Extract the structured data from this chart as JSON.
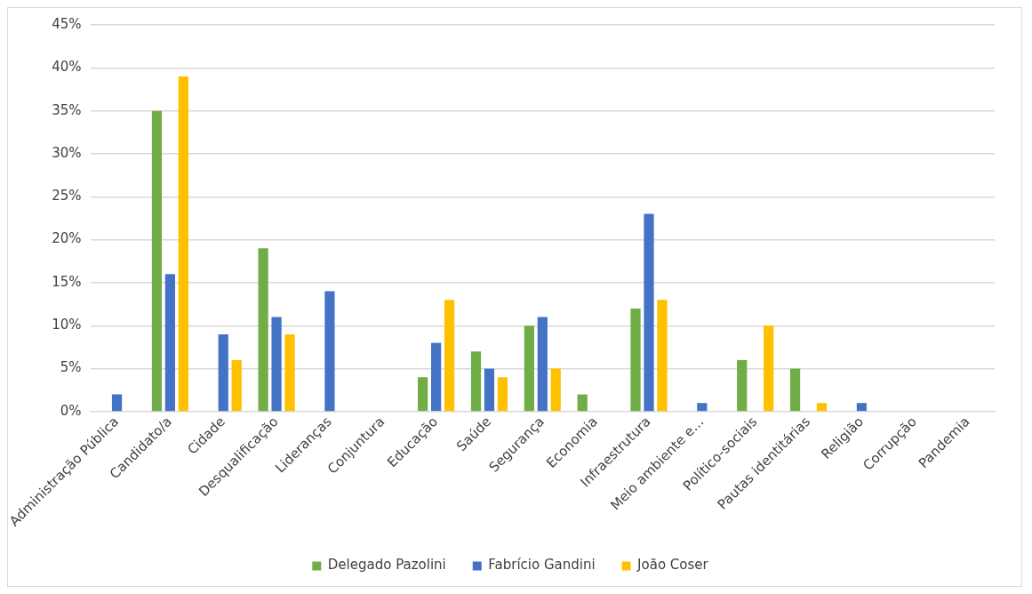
{
  "chart_data": {
    "type": "bar",
    "categories": [
      "Administração Pública",
      "Candidato/a",
      "Cidade",
      "Desqualificação",
      "Lideranças",
      "Conjuntura",
      "Educação",
      "Saúde",
      "Segurança",
      "Economia",
      "Infraestrutura",
      "Meio ambiente e…",
      "Político-sociais",
      "Pautas identitárias",
      "Religião",
      "Corrupção",
      "Pandemia"
    ],
    "series": [
      {
        "name": "Delegado Pazolini",
        "color": "#70ad47",
        "values": [
          0,
          35,
          0,
          19,
          0,
          0,
          4,
          7,
          10,
          2,
          12,
          0,
          6,
          5,
          0,
          0,
          0
        ]
      },
      {
        "name": "Fabrício Gandini",
        "color": "#4472c4",
        "values": [
          2,
          16,
          9,
          11,
          14,
          0,
          8,
          5,
          11,
          0,
          23,
          1,
          0,
          0,
          1,
          0,
          0
        ]
      },
      {
        "name": "João Coser",
        "color": "#ffc000",
        "values": [
          0,
          39,
          6,
          9,
          0,
          0,
          13,
          4,
          5,
          0,
          13,
          0,
          10,
          1,
          0,
          0,
          0
        ]
      }
    ],
    "ylim": [
      0,
      45
    ],
    "yticks": [
      {
        "value": 0,
        "label": "0%"
      },
      {
        "value": 5,
        "label": "5%"
      },
      {
        "value": 10,
        "label": "10%"
      },
      {
        "value": 15,
        "label": "15%"
      },
      {
        "value": 20,
        "label": "20%"
      },
      {
        "value": 25,
        "label": "25%"
      },
      {
        "value": 30,
        "label": "30%"
      },
      {
        "value": 35,
        "label": "35%"
      },
      {
        "value": 40,
        "label": "40%"
      },
      {
        "value": 45,
        "label": "45%"
      }
    ],
    "grid": "y",
    "legend": "bottom"
  }
}
